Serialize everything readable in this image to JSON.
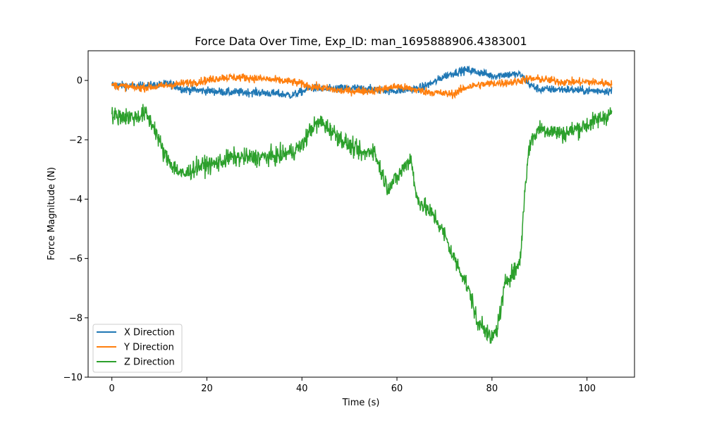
{
  "chart_data": {
    "type": "line",
    "title": "Force Data Over Time, Exp_ID: man_1695888906.4383001",
    "xlabel": "Time (s)",
    "ylabel": "Force Magnitude (N)",
    "xlim": [
      -5,
      110
    ],
    "ylim": [
      -10,
      1
    ],
    "xticks": [
      0,
      20,
      40,
      60,
      80,
      100
    ],
    "yticks": [
      -10,
      -8,
      -6,
      -4,
      -2,
      0
    ],
    "grid": false,
    "legend_position": "lower-left",
    "x_end": 105.2,
    "series": [
      {
        "name": "X Direction",
        "color": "#1f77b4",
        "noise": 0.1,
        "x": [
          0,
          5,
          10,
          12,
          15,
          20,
          25,
          30,
          35,
          38,
          42,
          45,
          50,
          55,
          60,
          63,
          65,
          68,
          70,
          73,
          75,
          78,
          80,
          83,
          86,
          88,
          90,
          95,
          100,
          105.2
        ],
        "y": [
          -0.15,
          -0.2,
          -0.15,
          -0.1,
          -0.3,
          -0.35,
          -0.4,
          -0.4,
          -0.45,
          -0.5,
          -0.25,
          -0.3,
          -0.25,
          -0.3,
          -0.35,
          -0.3,
          -0.25,
          -0.05,
          0.15,
          0.3,
          0.35,
          0.25,
          0.15,
          0.2,
          0.2,
          -0.15,
          -0.3,
          -0.3,
          -0.35,
          -0.35
        ]
      },
      {
        "name": "Y Direction",
        "color": "#ff7f0e",
        "noise": 0.1,
        "x": [
          0,
          5,
          10,
          15,
          20,
          23,
          28,
          32,
          38,
          42,
          48,
          55,
          60,
          65,
          70,
          72,
          75,
          80,
          85,
          87,
          90,
          95,
          100,
          105.2
        ],
        "y": [
          -0.15,
          -0.25,
          -0.2,
          -0.1,
          0,
          0.1,
          0.1,
          0.05,
          -0.05,
          -0.2,
          -0.35,
          -0.35,
          -0.2,
          -0.35,
          -0.45,
          -0.45,
          -0.2,
          -0.1,
          -0.05,
          0.05,
          0.05,
          -0.05,
          -0.05,
          -0.1
        ]
      },
      {
        "name": "Z Direction",
        "color": "#2ca02c",
        "noise": 0.22,
        "x": [
          0,
          2,
          5,
          7,
          9,
          11,
          13,
          15,
          18,
          22,
          25,
          30,
          35,
          38,
          40,
          42,
          44,
          47,
          50,
          53,
          55,
          57,
          58,
          60,
          62,
          63,
          64,
          66,
          68,
          70,
          72,
          74,
          76,
          77,
          78,
          79,
          80,
          81,
          82,
          83,
          85,
          86,
          87,
          88,
          90,
          95,
          100,
          105.2
        ],
        "y": [
          -1.2,
          -1.2,
          -1.25,
          -1.1,
          -1.6,
          -2.5,
          -2.9,
          -3.2,
          -2.9,
          -2.8,
          -2.6,
          -2.6,
          -2.55,
          -2.4,
          -2.2,
          -1.6,
          -1.4,
          -1.8,
          -2.2,
          -2.5,
          -2.3,
          -3.2,
          -3.6,
          -3.3,
          -2.8,
          -2.6,
          -3.9,
          -4.3,
          -4.6,
          -5.2,
          -6.0,
          -6.6,
          -7.5,
          -8.3,
          -8.1,
          -8.6,
          -8.7,
          -8.4,
          -7.6,
          -6.7,
          -6.4,
          -6.0,
          -3.5,
          -2.1,
          -1.6,
          -1.8,
          -1.5,
          -1.1
        ]
      }
    ]
  }
}
